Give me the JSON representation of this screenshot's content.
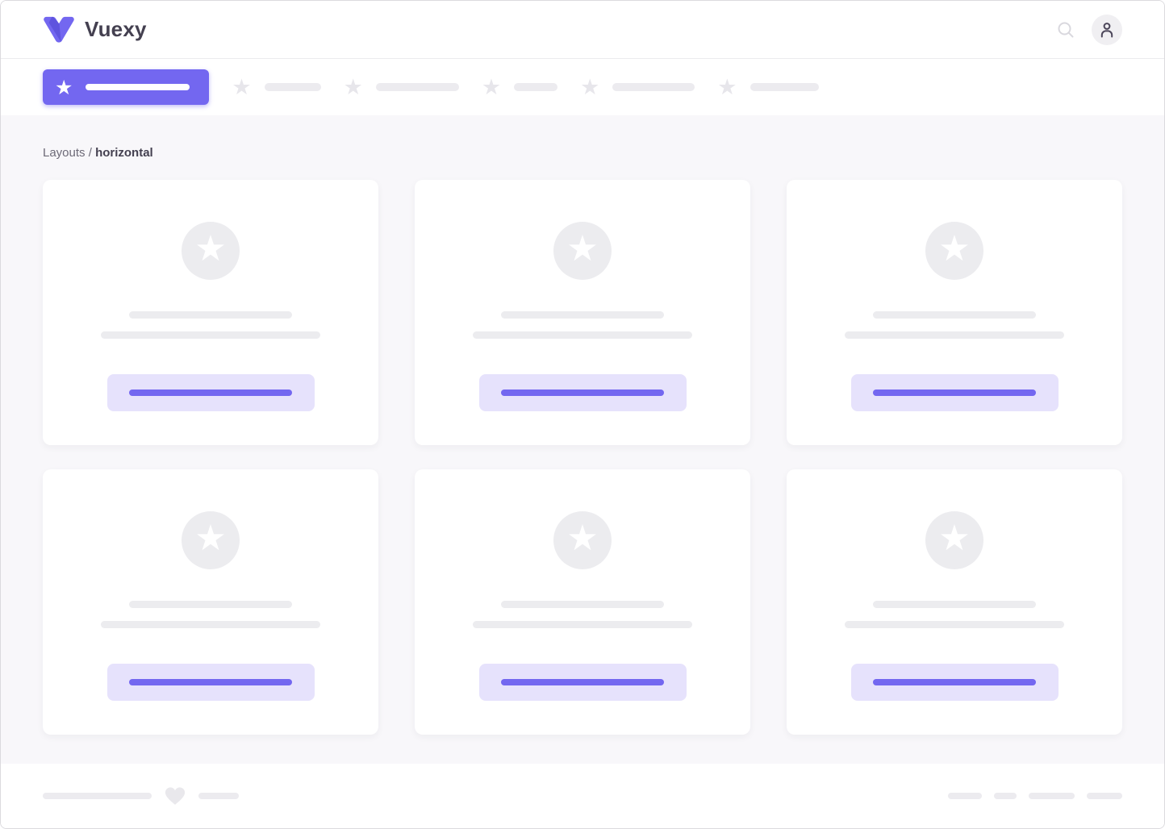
{
  "header": {
    "brand": "Vuexy",
    "search_icon": "search",
    "user_icon": "user"
  },
  "navbar": {
    "items": [
      {
        "icon": "star",
        "active": true,
        "label_bar_width": 129
      },
      {
        "icon": "star",
        "active": false,
        "label_bar_width": 70
      },
      {
        "icon": "star",
        "active": false,
        "label_bar_width": 103
      },
      {
        "icon": "star",
        "active": false,
        "label_bar_width": 54
      },
      {
        "icon": "star",
        "active": false,
        "label_bar_width": 102
      },
      {
        "icon": "star",
        "active": false,
        "label_bar_width": 85
      }
    ]
  },
  "breadcrumb": {
    "section": "Layouts",
    "separator": "/",
    "current": "horizontal"
  },
  "content": {
    "cards": [
      {
        "icon": "star",
        "line_widths": [
          202,
          272
        ],
        "button_bar_width": 202
      },
      {
        "icon": "star",
        "line_widths": [
          202,
          272
        ],
        "button_bar_width": 202
      },
      {
        "icon": "star",
        "line_widths": [
          202,
          272
        ],
        "button_bar_width": 202
      },
      {
        "icon": "star",
        "line_widths": [
          202,
          272
        ],
        "button_bar_width": 202
      },
      {
        "icon": "star",
        "line_widths": [
          202,
          272
        ],
        "button_bar_width": 202
      },
      {
        "icon": "star",
        "line_widths": [
          202,
          272
        ],
        "button_bar_width": 202
      }
    ]
  },
  "footer": {
    "left_bars": [
      135,
      50
    ],
    "heart_icon": "heart",
    "right_bars": [
      42,
      28,
      57,
      44
    ]
  },
  "colors": {
    "primary": "#7367F0",
    "primary_dark": "#5C51DA",
    "primary_light": "#E6E2FC",
    "placeholder": "#ECEBEF",
    "content_bg": "#F8F7FA",
    "surface": "#FFFFFF",
    "text_dark": "#444050",
    "text_muted": "#6D6A77"
  }
}
